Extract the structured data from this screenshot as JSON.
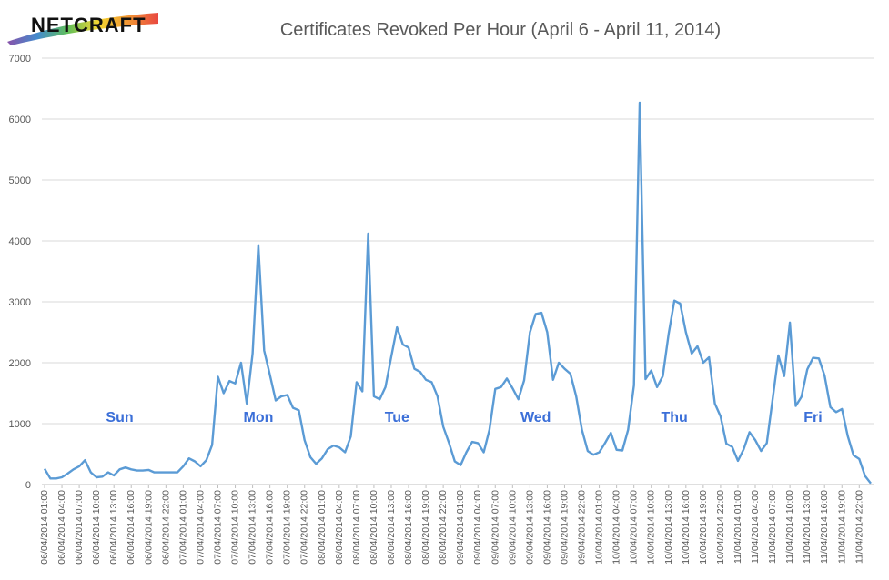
{
  "brand": {
    "logo_text": "NETCRAFT",
    "colors": [
      "#e6322b",
      "#f08a1e",
      "#f2d21b",
      "#4fb848",
      "#2f7fc8",
      "#7b3fa0"
    ]
  },
  "chart_data": {
    "type": "line",
    "title": "Certificates Revoked Per Hour (April 6 - April 11, 2014)",
    "xlabel": "",
    "ylabel": "",
    "ylim": [
      0,
      7000
    ],
    "yticks": [
      0,
      1000,
      2000,
      3000,
      4000,
      5000,
      6000,
      7000
    ],
    "grid": "horizontal",
    "legend": "none",
    "line_color": "#5b9bd5",
    "x_tick_labels": [
      "06/04/2014 01:00",
      "06/04/2014 04:00",
      "06/04/2014 07:00",
      "06/04/2014 10:00",
      "06/04/2014 13:00",
      "06/04/2014 16:00",
      "06/04/2014 19:00",
      "06/04/2014 22:00",
      "07/04/2014 01:00",
      "07/04/2014 04:00",
      "07/04/2014 07:00",
      "07/04/2014 10:00",
      "07/04/2014 13:00",
      "07/04/2014 16:00",
      "07/04/2014 19:00",
      "07/04/2014 22:00",
      "08/04/2014 01:00",
      "08/04/2014 04:00",
      "08/04/2014 07:00",
      "08/04/2014 10:00",
      "08/04/2014 13:00",
      "08/04/2014 16:00",
      "08/04/2014 19:00",
      "08/04/2014 22:00",
      "09/04/2014 01:00",
      "09/04/2014 04:00",
      "09/04/2014 07:00",
      "09/04/2014 10:00",
      "09/04/2014 13:00",
      "09/04/2014 16:00",
      "09/04/2014 19:00",
      "09/04/2014 22:00",
      "10/04/2014 01:00",
      "10/04/2014 04:00",
      "10/04/2014 07:00",
      "10/04/2014 10:00",
      "10/04/2014 13:00",
      "10/04/2014 16:00",
      "10/04/2014 19:00",
      "10/04/2014 22:00",
      "11/04/2014 01:00",
      "11/04/2014 04:00",
      "11/04/2014 07:00",
      "11/04/2014 10:00",
      "11/04/2014 13:00",
      "11/04/2014 16:00",
      "11/04/2014 19:00",
      "11/04/2014 22:00"
    ],
    "day_labels": [
      {
        "text": "Sun",
        "at_hour": 13
      },
      {
        "text": "Mon",
        "at_hour": 37
      },
      {
        "text": "Tue",
        "at_hour": 61
      },
      {
        "text": "Wed",
        "at_hour": 85
      },
      {
        "text": "Thu",
        "at_hour": 109
      },
      {
        "text": "Fri",
        "at_hour": 133
      }
    ],
    "series": [
      {
        "values": [
          260,
          100,
          100,
          120,
          180,
          250,
          300,
          400,
          200,
          120,
          130,
          200,
          150,
          250,
          280,
          250,
          230,
          230,
          240,
          200,
          200,
          200,
          200,
          200,
          300,
          430,
          380,
          300,
          400,
          650,
          1770,
          1500,
          1700,
          1660,
          2000,
          1330,
          2150,
          3930,
          2200,
          1800,
          1380,
          1450,
          1470,
          1260,
          1220,
          730,
          450,
          340,
          430,
          580,
          640,
          610,
          530,
          790,
          1680,
          1530,
          4120,
          1450,
          1400,
          1600,
          2100,
          2580,
          2300,
          2250,
          1900,
          1850,
          1720,
          1680,
          1450,
          950,
          680,
          380,
          320,
          530,
          700,
          680,
          530,
          900,
          1570,
          1600,
          1740,
          1580,
          1400,
          1710,
          2500,
          2800,
          2820,
          2500,
          1720,
          2000,
          1900,
          1820,
          1450,
          900,
          550,
          490,
          530,
          680,
          850,
          570,
          560,
          900,
          1630,
          6270,
          1730,
          1870,
          1600,
          1780,
          2470,
          3020,
          2970,
          2500,
          2150,
          2270,
          2000,
          2090,
          1330,
          1120,
          670,
          620,
          390,
          580,
          860,
          730,
          550,
          680,
          1400,
          2120,
          1780,
          2660,
          1290,
          1440,
          1890,
          2080,
          2070,
          1790,
          1270,
          1190,
          1240,
          800,
          480,
          420,
          140,
          20
        ]
      }
    ]
  }
}
